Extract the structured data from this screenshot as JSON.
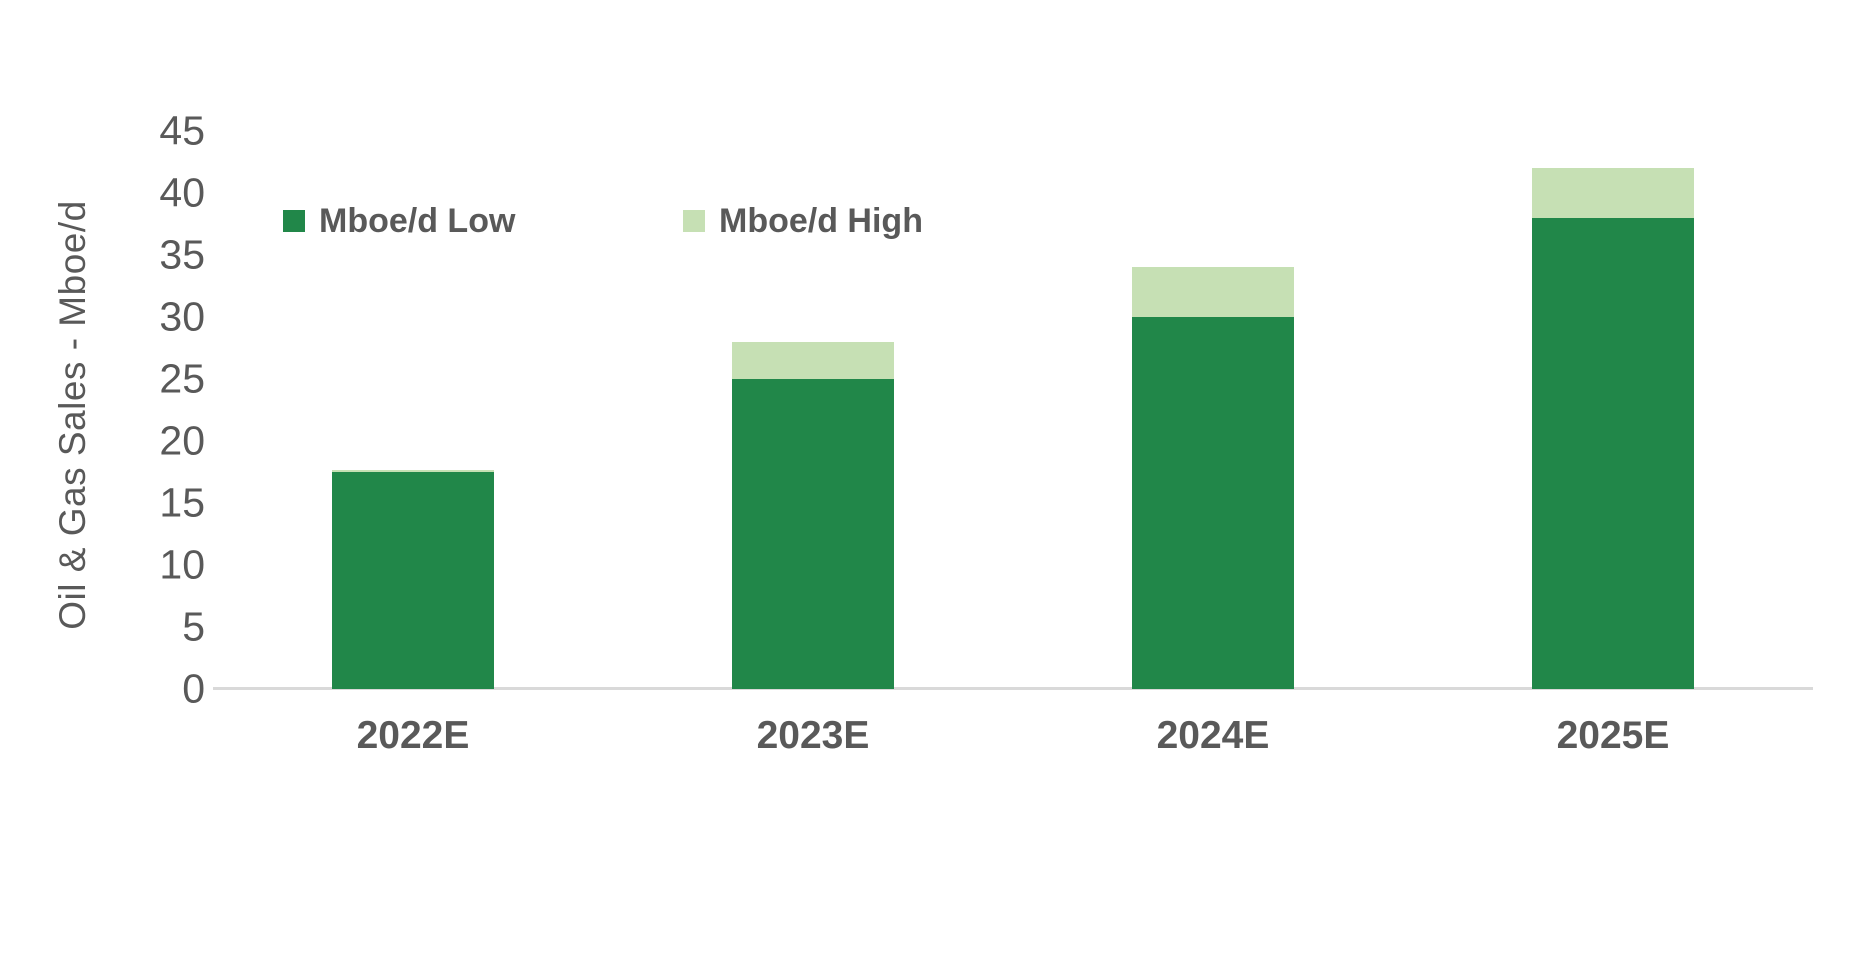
{
  "chart_data": {
    "type": "bar",
    "stacked": true,
    "title": "",
    "xlabel": "",
    "ylabel": "Oil & Gas Sales - Mboe/d",
    "categories": [
      "2022E",
      "2023E",
      "2024E",
      "2025E"
    ],
    "series": [
      {
        "name": "Mboe/d Low",
        "color": "#218749",
        "values": [
          17.5,
          25,
          30,
          38
        ]
      },
      {
        "name": "Mboe/d High",
        "color": "#c6e0b4",
        "values": [
          17.5,
          28,
          34,
          42
        ]
      }
    ],
    "high_values_are_totals": true,
    "ylim": [
      0,
      45
    ],
    "yticks": [
      0,
      5,
      10,
      15,
      20,
      25,
      30,
      35,
      40,
      45
    ],
    "grid": false,
    "legend_position": "top-left-inside"
  },
  "colors": {
    "low_series": "#218749",
    "high_series": "#c6e0b4",
    "axis_line": "#d9d9d9",
    "text": "#595959",
    "background": "#ffffff"
  }
}
